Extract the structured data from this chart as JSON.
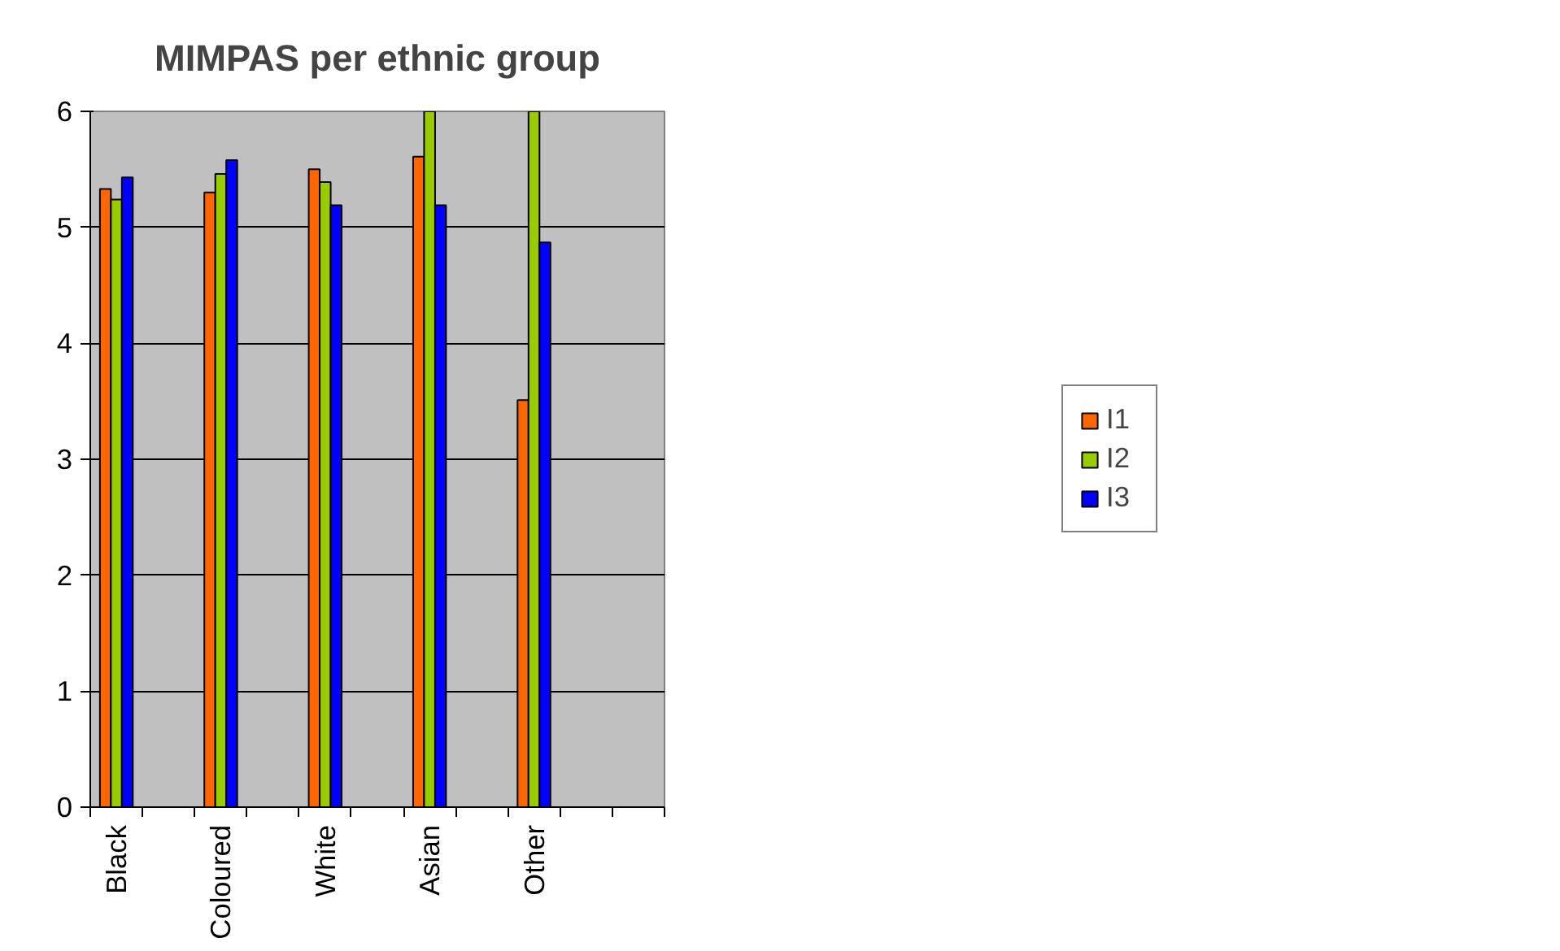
{
  "chart_data": {
    "type": "bar",
    "title": "MIMPAS per ethnic group",
    "categories": [
      "Black",
      null,
      "Coloured",
      null,
      "White",
      null,
      "Asian",
      null,
      "Other",
      null,
      null
    ],
    "series": [
      {
        "name": "I1",
        "color": "#ff6600",
        "values": [
          5.33,
          null,
          5.3,
          null,
          5.5,
          null,
          5.61,
          null,
          3.51,
          null,
          null
        ]
      },
      {
        "name": "I2",
        "color": "#99cc00",
        "values": [
          5.24,
          null,
          5.46,
          null,
          5.39,
          null,
          6.0,
          null,
          6.0,
          null,
          null
        ]
      },
      {
        "name": "I3",
        "color": "#0000ff",
        "values": [
          5.43,
          null,
          5.58,
          null,
          5.19,
          null,
          5.19,
          null,
          4.87,
          null,
          null
        ]
      }
    ],
    "ylim": [
      0,
      6
    ],
    "yticks": [
      0,
      1,
      2,
      3,
      4,
      5,
      6
    ],
    "grid": "y",
    "legend": "right"
  }
}
